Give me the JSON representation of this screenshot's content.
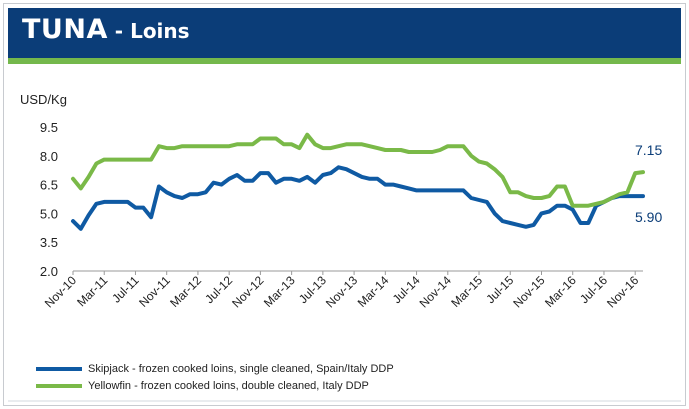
{
  "header": {
    "title": "TUNA",
    "subtitle": " - Loins",
    "bar_color": "#0b3d78",
    "rule_color": "#74b84c"
  },
  "chart_data": {
    "type": "line",
    "ylabel": "USD/Kg",
    "xlabel": "",
    "ylim": [
      2.0,
      9.5
    ],
    "yticks": [
      "9.5",
      "8.0",
      "6.5",
      "5.0",
      "3.5",
      "2.0"
    ],
    "grid": false,
    "legend_position": "bottom",
    "x_tick_labels": [
      "Nov-10",
      "Mar-11",
      "Jul-11",
      "Nov-11",
      "Mar-12",
      "Jul-12",
      "Nov-12",
      "Mar-13",
      "Jul-13",
      "Nov-13",
      "Mar-14",
      "Jul-14",
      "Nov-14",
      "Mar-15",
      "Jul-15",
      "Nov-15",
      "Mar-16",
      "Jul-16",
      "Nov-16"
    ],
    "x": [
      "Nov-10",
      "Dec-10",
      "Jan-11",
      "Feb-11",
      "Mar-11",
      "Apr-11",
      "May-11",
      "Jun-11",
      "Jul-11",
      "Aug-11",
      "Sep-11",
      "Oct-11",
      "Nov-11",
      "Dec-11",
      "Jan-12",
      "Feb-12",
      "Mar-12",
      "Apr-12",
      "May-12",
      "Jun-12",
      "Jul-12",
      "Aug-12",
      "Sep-12",
      "Oct-12",
      "Nov-12",
      "Dec-12",
      "Jan-13",
      "Feb-13",
      "Mar-13",
      "Apr-13",
      "May-13",
      "Jun-13",
      "Jul-13",
      "Aug-13",
      "Sep-13",
      "Oct-13",
      "Nov-13",
      "Dec-13",
      "Jan-14",
      "Feb-14",
      "Mar-14",
      "Apr-14",
      "May-14",
      "Jun-14",
      "Jul-14",
      "Aug-14",
      "Sep-14",
      "Oct-14",
      "Nov-14",
      "Dec-14",
      "Jan-15",
      "Feb-15",
      "Mar-15",
      "Apr-15",
      "May-15",
      "Jun-15",
      "Jul-15",
      "Aug-15",
      "Sep-15",
      "Oct-15",
      "Nov-15",
      "Dec-15",
      "Jan-16",
      "Feb-16",
      "Mar-16",
      "Apr-16",
      "May-16",
      "Jun-16",
      "Jul-16",
      "Aug-16",
      "Sep-16",
      "Oct-16",
      "Nov-16",
      "Dec-16"
    ],
    "series": [
      {
        "name": "Skipjack - frozen cooked loins, single cleaned, Spain/Italy DDP",
        "color": "#0f5aa3",
        "values": [
          4.6,
          4.2,
          4.9,
          5.5,
          5.6,
          5.6,
          5.6,
          5.6,
          5.3,
          5.3,
          4.8,
          6.4,
          6.1,
          5.9,
          5.8,
          6.0,
          6.0,
          6.1,
          6.6,
          6.5,
          6.8,
          7.0,
          6.7,
          6.7,
          7.1,
          7.1,
          6.6,
          6.8,
          6.8,
          6.7,
          6.9,
          6.6,
          7.0,
          7.1,
          7.4,
          7.3,
          7.1,
          6.9,
          6.8,
          6.8,
          6.5,
          6.5,
          6.4,
          6.3,
          6.2,
          6.2,
          6.2,
          6.2,
          6.2,
          6.2,
          6.2,
          5.8,
          5.7,
          5.6,
          5.0,
          4.6,
          4.5,
          4.4,
          4.3,
          4.4,
          5.0,
          5.1,
          5.4,
          5.4,
          5.2,
          4.5,
          4.5,
          5.4,
          5.6,
          5.8,
          5.9,
          5.9,
          5.9,
          5.9
        ]
      },
      {
        "name": "Yellowfin - frozen cooked loins, double cleaned, Italy DDP",
        "color": "#7ab948",
        "values": [
          6.8,
          6.3,
          6.9,
          7.6,
          7.8,
          7.8,
          7.8,
          7.8,
          7.8,
          7.8,
          7.8,
          8.5,
          8.4,
          8.4,
          8.5,
          8.5,
          8.5,
          8.5,
          8.5,
          8.5,
          8.5,
          8.6,
          8.6,
          8.6,
          8.9,
          8.9,
          8.9,
          8.6,
          8.6,
          8.4,
          9.1,
          8.6,
          8.4,
          8.4,
          8.5,
          8.6,
          8.6,
          8.6,
          8.5,
          8.4,
          8.3,
          8.3,
          8.3,
          8.2,
          8.2,
          8.2,
          8.2,
          8.3,
          8.5,
          8.5,
          8.5,
          8.0,
          7.7,
          7.6,
          7.3,
          6.9,
          6.1,
          6.1,
          5.9,
          5.8,
          5.8,
          5.9,
          6.4,
          6.4,
          5.4,
          5.4,
          5.4,
          5.5,
          5.6,
          5.8,
          6.0,
          6.1,
          7.1,
          7.15
        ]
      }
    ],
    "end_labels": [
      {
        "series": 1,
        "text": "7.15"
      },
      {
        "series": 0,
        "text": "5.90"
      }
    ]
  }
}
